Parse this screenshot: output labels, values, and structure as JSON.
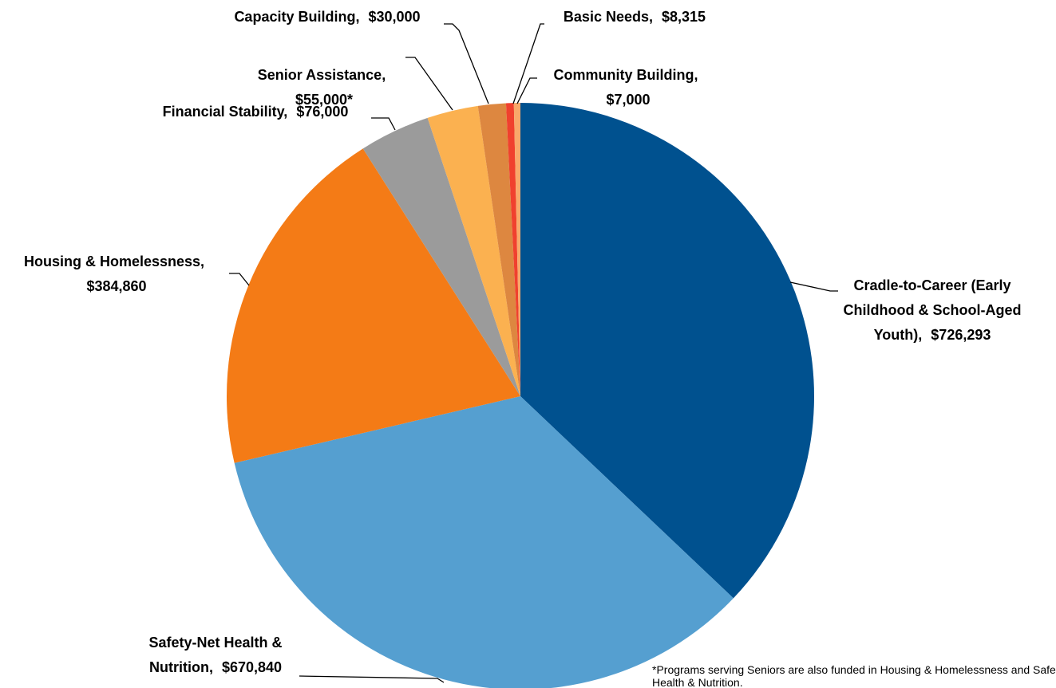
{
  "chart_data": {
    "type": "pie",
    "categories": [
      "Cradle-to-Career (Early Childhood & School-Aged Youth)",
      "Safety-Net Health & Nutrition",
      "Housing & Homelessness",
      "Financial Stability",
      "Senior Assistance",
      "Capacity Building",
      "Basic Needs",
      "Community Building"
    ],
    "values": [
      726293,
      670840,
      384860,
      76000,
      55000,
      30000,
      8315,
      7000
    ],
    "value_labels": [
      "$726,293",
      "$670,840",
      "$384,860",
      "$76,000",
      "$55,000*",
      "$30,000",
      "$8,315",
      "$7,000"
    ],
    "label_separator": ",",
    "colors": [
      "#00518f",
      "#559fd0",
      "#f47b16",
      "#9b9b9b",
      "#fbb150",
      "#dd8740",
      "#f0412e",
      "#f9a86a"
    ],
    "footnote": "*Programs serving Seniors are also funded in Housing & Homelessness and Safety-Net Health & Nutrition."
  }
}
